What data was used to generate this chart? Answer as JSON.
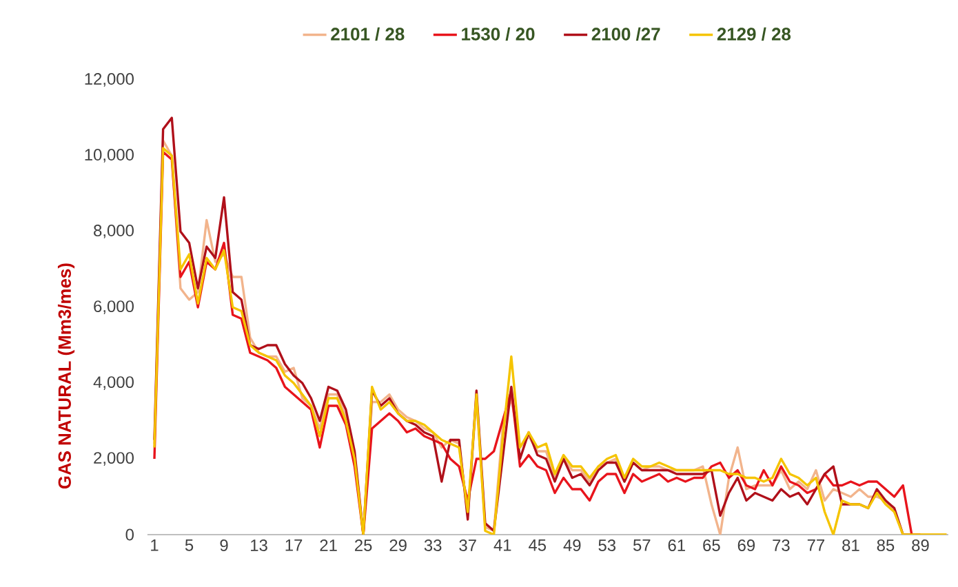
{
  "chart_data": {
    "type": "line",
    "ylabel": "GAS NATURAL (Mm3/mes)",
    "legend": "top",
    "categories": [
      "1",
      null,
      null,
      null,
      "5",
      null,
      null,
      null,
      "9",
      null,
      null,
      null,
      "13",
      null,
      null,
      null,
      "17",
      null,
      null,
      null,
      "21",
      null,
      null,
      null,
      "25",
      null,
      null,
      null,
      "29",
      null,
      null,
      null,
      "33",
      null,
      null,
      null,
      "37",
      null,
      null,
      null,
      "41",
      null,
      null,
      null,
      "45",
      null,
      null,
      null,
      "49",
      null,
      null,
      null,
      "53",
      null,
      null,
      null,
      "57",
      null,
      null,
      null,
      "61",
      null,
      null,
      null,
      "65",
      null,
      null,
      null,
      "69",
      null,
      null,
      null,
      "73",
      null,
      null,
      null,
      "77",
      null,
      null,
      null,
      "81",
      null,
      null,
      null,
      "85",
      null,
      null,
      null,
      "89",
      null,
      null,
      null
    ],
    "ylim": [
      0,
      12000
    ],
    "yticks": [
      0,
      {
        "value": 2000,
        "label": "2,000"
      },
      {
        "value": 4000,
        "label": "4,000"
      },
      {
        "value": 6000,
        "label": "6,000"
      },
      {
        "value": 8000,
        "label": "8,000"
      },
      {
        "value": 10000,
        "label": "10,000"
      },
      {
        "value": 12000,
        "label": "12,000"
      }
    ],
    "series": [
      {
        "name": "2101 / 28",
        "color": "#f2b48c",
        "values": [
          2400,
          10400,
          10000,
          6500,
          6200,
          6400,
          8300,
          7200,
          7400,
          6800,
          6800,
          5200,
          4800,
          4700,
          4700,
          4300,
          4400,
          3600,
          3400,
          2800,
          3700,
          3700,
          3100,
          2100,
          0,
          3500,
          3500,
          3700,
          3300,
          3100,
          3000,
          2800,
          2700,
          2300,
          2500,
          2400,
          500,
          3600,
          200,
          100,
          2800,
          3600,
          2300,
          2600,
          2200,
          2200,
          1500,
          2000,
          1700,
          1700,
          1400,
          1800,
          1900,
          2000,
          1400,
          1900,
          1700,
          1800,
          1800,
          1700,
          1700,
          1700,
          1700,
          1800,
          800,
          0,
          1500,
          2300,
          1200,
          1300,
          1300,
          1300,
          1700,
          1200,
          1400,
          1200,
          1700,
          900,
          1200,
          1100,
          1000,
          1200,
          1000,
          1000,
          900,
          600,
          0,
          0,
          0,
          0,
          0,
          0
        ]
      },
      {
        "name": "1530 / 20",
        "color": "#e8141c",
        "values": [
          2000,
          10100,
          9900,
          6800,
          7200,
          6000,
          7200,
          7000,
          7700,
          5800,
          5700,
          4800,
          4700,
          4600,
          4400,
          3900,
          3700,
          3500,
          3300,
          2300,
          3400,
          3400,
          2900,
          1800,
          0,
          2800,
          3000,
          3200,
          3000,
          2700,
          2800,
          2600,
          2500,
          2400,
          2000,
          1800,
          900,
          2000,
          2000,
          2200,
          3000,
          3800,
          1800,
          2100,
          1800,
          1700,
          1100,
          1500,
          1200,
          1200,
          900,
          1400,
          1600,
          1600,
          1100,
          1600,
          1400,
          1500,
          1600,
          1400,
          1500,
          1400,
          1500,
          1500,
          1800,
          1900,
          1500,
          1700,
          1300,
          1200,
          1700,
          1300,
          1800,
          1400,
          1300,
          1100,
          1200,
          1600,
          1300,
          1300,
          1400,
          1300,
          1400,
          1400,
          1200,
          1000,
          1300,
          0,
          0,
          null,
          null,
          null
        ]
      },
      {
        "name": "2100 /27",
        "color": "#b0101a",
        "values": [
          2500,
          10700,
          11000,
          8000,
          7700,
          6500,
          7600,
          7300,
          8900,
          6400,
          6200,
          5000,
          4900,
          5000,
          5000,
          4500,
          4200,
          4000,
          3600,
          3000,
          3900,
          3800,
          3300,
          2200,
          0,
          3800,
          3400,
          3600,
          3200,
          3000,
          2900,
          2700,
          2600,
          1400,
          2500,
          2500,
          400,
          3800,
          300,
          100,
          2000,
          3900,
          2000,
          2700,
          2100,
          2000,
          1400,
          2000,
          1500,
          1600,
          1300,
          1700,
          1900,
          1900,
          1400,
          1900,
          1700,
          1700,
          1700,
          1700,
          1600,
          1600,
          1600,
          1600,
          1700,
          500,
          1100,
          1500,
          900,
          1100,
          1000,
          900,
          1200,
          1000,
          1100,
          800,
          1200,
          1600,
          1800,
          800,
          800,
          800,
          700,
          1200,
          900,
          700,
          0,
          0,
          null,
          null,
          null,
          null
        ]
      },
      {
        "name": "2129 / 28",
        "color": "#f5c400",
        "values": [
          2300,
          10200,
          10000,
          7000,
          7400,
          6100,
          7300,
          7000,
          7500,
          6000,
          5900,
          5000,
          4800,
          4700,
          4600,
          4200,
          4000,
          3700,
          3400,
          2600,
          3600,
          3600,
          3000,
          2000,
          0,
          3900,
          3300,
          3500,
          3200,
          3000,
          3000,
          2900,
          2700,
          2500,
          2400,
          2300,
          600,
          3700,
          100,
          0,
          2500,
          4700,
          2300,
          2700,
          2300,
          2400,
          1600,
          2100,
          1800,
          1800,
          1500,
          1800,
          2000,
          2100,
          1500,
          2000,
          1800,
          1800,
          1900,
          1800,
          1700,
          1700,
          1700,
          1700,
          1700,
          1700,
          1600,
          1600,
          1500,
          1500,
          1400,
          1500,
          2000,
          1600,
          1500,
          1300,
          1500,
          600,
          0,
          900,
          800,
          800,
          700,
          1100,
          800,
          600,
          0,
          0,
          0,
          0,
          0,
          0
        ]
      }
    ]
  }
}
